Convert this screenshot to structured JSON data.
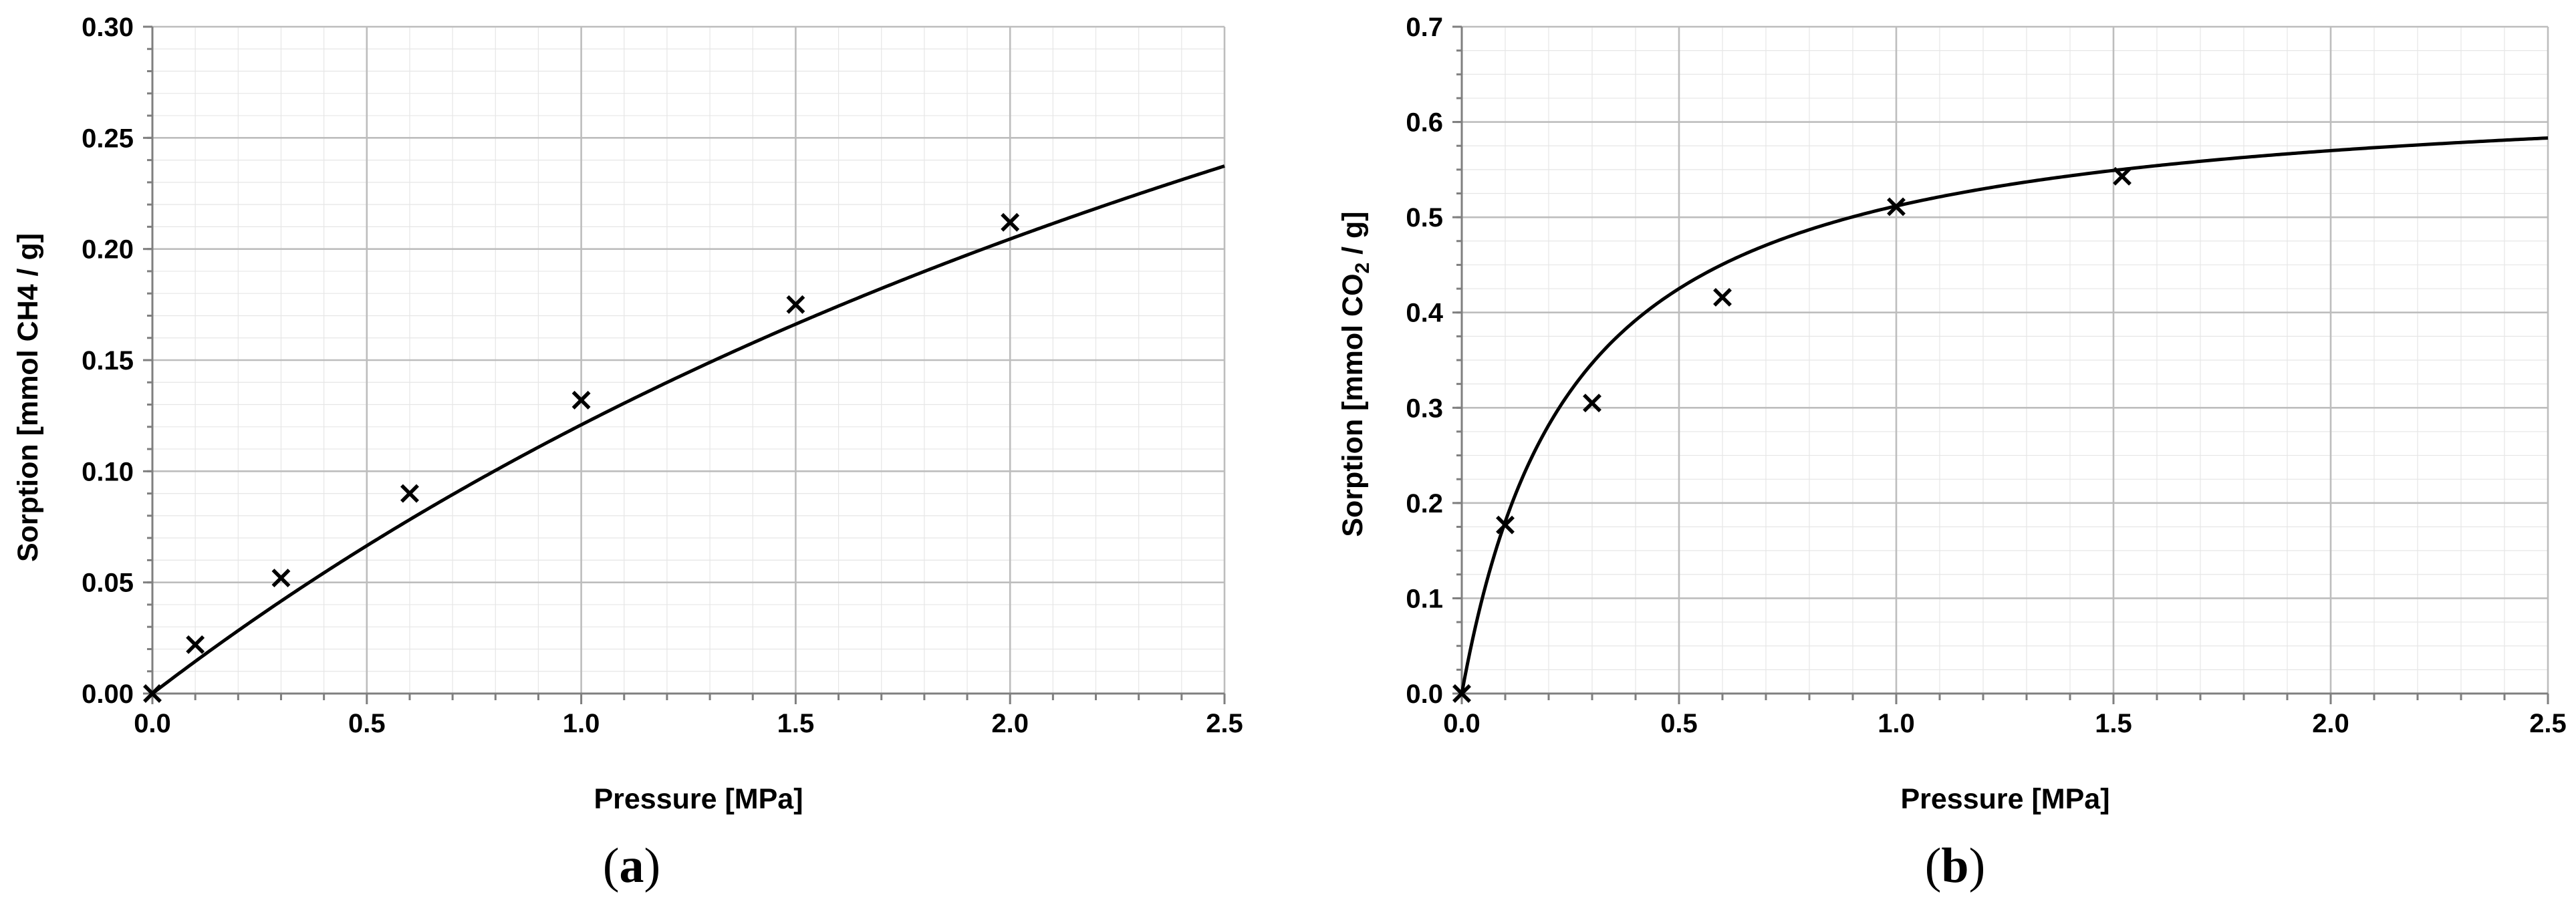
{
  "chart_data": [
    {
      "type": "scatter",
      "panel_label": "a",
      "xlabel": "Pressure [MPa]",
      "ylabel": "Sorption [mmol CH4 / g]",
      "xlim": [
        0,
        2.5
      ],
      "ylim": [
        0,
        0.3
      ],
      "x_ticks": [
        "0.0",
        "0.5",
        "1.0",
        "1.5",
        "2.0",
        "2.5"
      ],
      "y_ticks": [
        "0.00",
        "0.05",
        "0.10",
        "0.15",
        "0.20",
        "0.25",
        "0.30"
      ],
      "grid": true,
      "series": [
        {
          "marker": "x",
          "x": [
            0.0,
            0.1,
            0.3,
            0.6,
            1.0,
            1.5,
            2.0
          ],
          "y": [
            0.0,
            0.022,
            0.052,
            0.09,
            0.132,
            0.175,
            0.212
          ]
        }
      ],
      "fit_curve": {
        "model": "langmuir",
        "qmax": 0.663,
        "b": 0.223
      },
      "colors": {
        "line": "#000000",
        "markers": "#000000"
      }
    },
    {
      "type": "scatter",
      "panel_label": "b",
      "xlabel": "Pressure [MPa]",
      "ylabel_parts": [
        "Sorption [mmol CO",
        "2",
        " / g]"
      ],
      "xlim": [
        0,
        2.5
      ],
      "ylim": [
        0,
        0.7
      ],
      "x_ticks": [
        "0.0",
        "0.5",
        "1.0",
        "1.5",
        "2.0",
        "2.5"
      ],
      "y_ticks": [
        "0.0",
        "0.1",
        "0.2",
        "0.3",
        "0.4",
        "0.5",
        "0.6",
        "0.7"
      ],
      "grid": true,
      "series": [
        {
          "marker": "x",
          "x": [
            0.0,
            0.1,
            0.3,
            0.6,
            1.0,
            1.52
          ],
          "y": [
            0.0,
            0.177,
            0.305,
            0.416,
            0.511,
            0.543
          ]
        }
      ],
      "fit_curve": {
        "model": "langmuir",
        "qmax": 0.643,
        "b": 3.9
      },
      "colors": {
        "line": "#000000",
        "markers": "#000000"
      }
    }
  ]
}
